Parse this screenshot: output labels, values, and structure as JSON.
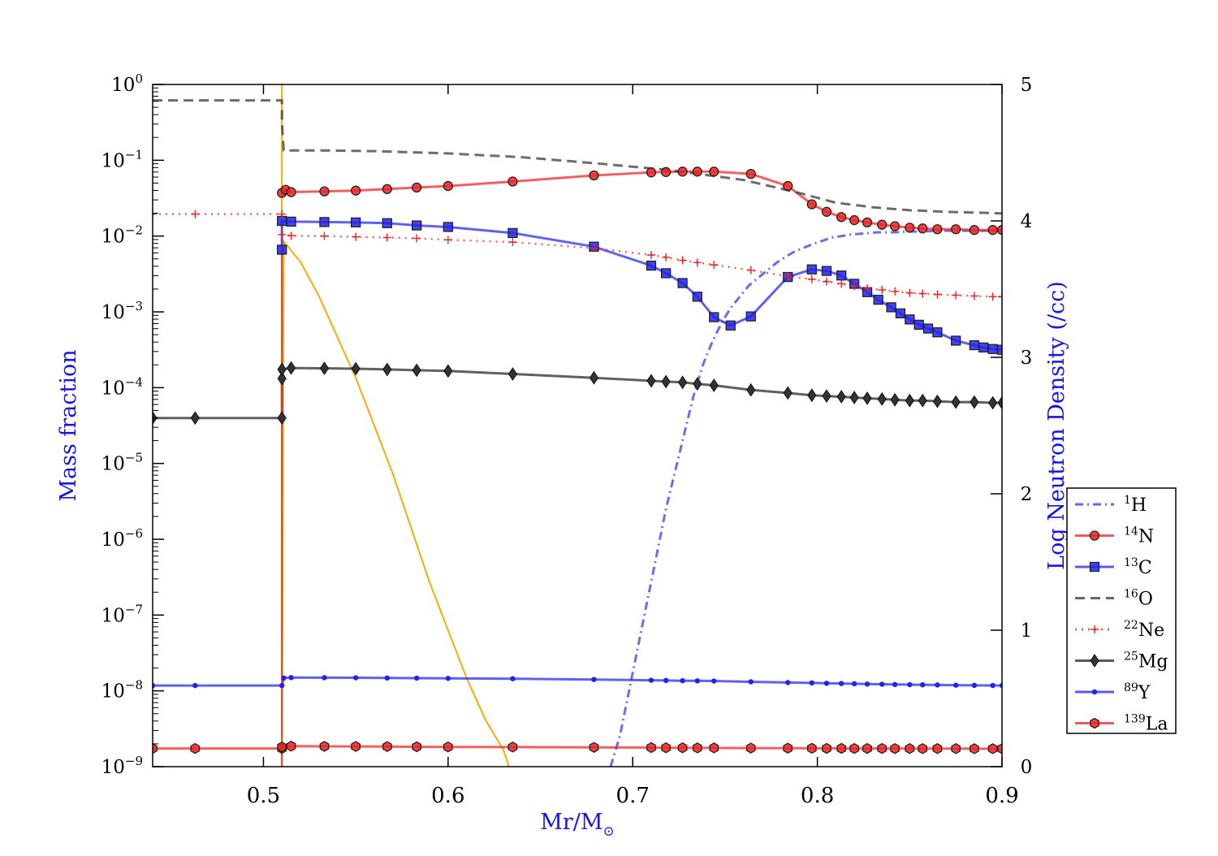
{
  "chart_data": {
    "type": "line",
    "title": "",
    "xlabel": "Mr/M",
    "xlabel_sub": "⊙",
    "ylabel": "Mass fraction",
    "y2label": "Log Neutron Density (/cc)",
    "xlim": [
      0.44,
      0.9
    ],
    "ylim_log10": [
      -9,
      0
    ],
    "y2lim": [
      0,
      5
    ],
    "y_scale": "log",
    "xticks": [
      0.5,
      0.6,
      0.7,
      0.8,
      0.9
    ],
    "xtick_labels": [
      "0.5",
      "0.6",
      "0.7",
      "0.8",
      "0.9"
    ],
    "ytick_exponents": [
      0,
      -1,
      -2,
      -3,
      -4,
      -5,
      -6,
      -7,
      -8,
      -9
    ],
    "ytick_base": "10",
    "y2ticks": [
      0,
      1,
      2,
      3,
      4,
      5
    ],
    "y2tick_labels": [
      "0",
      "1",
      "2",
      "3",
      "4",
      "5"
    ],
    "legend_position": "right",
    "series": [
      {
        "name": "1H",
        "mass": "1",
        "sym": "H",
        "color": "#3333ee",
        "style": "dashdot",
        "marker": "none",
        "x": [
          0.688,
          0.693,
          0.698,
          0.703,
          0.708,
          0.713,
          0.718,
          0.723,
          0.728,
          0.733,
          0.738,
          0.743,
          0.748,
          0.753,
          0.758,
          0.763,
          0.768,
          0.773,
          0.778,
          0.783,
          0.788,
          0.793,
          0.798,
          0.803,
          0.808,
          0.813,
          0.818,
          0.823,
          0.828,
          0.833,
          0.838,
          0.843,
          0.848,
          0.853,
          0.858,
          0.863,
          0.868,
          0.873,
          0.878,
          0.883,
          0.888,
          0.893,
          0.9
        ],
        "y": [
          -9.0,
          -8.6,
          -8.0,
          -7.4,
          -6.8,
          -6.2,
          -5.6,
          -5.1,
          -4.6,
          -4.1,
          -3.7,
          -3.4,
          -3.15,
          -2.95,
          -2.8,
          -2.65,
          -2.55,
          -2.45,
          -2.35,
          -2.27,
          -2.2,
          -2.15,
          -2.1,
          -2.06,
          -2.02,
          -2.0,
          -1.98,
          -1.97,
          -1.96,
          -1.95,
          -1.95,
          -1.95,
          -1.94,
          -1.94,
          -1.94,
          -1.93,
          -1.93,
          -1.93,
          -1.93,
          -1.93,
          -1.93,
          -1.93,
          -1.93
        ]
      },
      {
        "name": "14N",
        "mass": "14",
        "sym": "N",
        "color": "#ee2222",
        "style": "solid",
        "marker": "circle",
        "x": [
          0.51,
          0.512,
          0.515,
          0.533,
          0.55,
          0.567,
          0.583,
          0.6,
          0.635,
          0.679,
          0.71,
          0.718,
          0.727,
          0.735,
          0.744,
          0.764,
          0.784,
          0.797,
          0.805,
          0.813,
          0.82,
          0.827,
          0.835,
          0.842,
          0.85,
          0.857,
          0.865,
          0.875,
          0.885,
          0.895,
          0.9
        ],
        "y": [
          -1.43,
          -1.39,
          -1.42,
          -1.41,
          -1.4,
          -1.38,
          -1.36,
          -1.34,
          -1.28,
          -1.2,
          -1.16,
          -1.155,
          -1.15,
          -1.15,
          -1.15,
          -1.18,
          -1.34,
          -1.58,
          -1.68,
          -1.75,
          -1.79,
          -1.82,
          -1.85,
          -1.87,
          -1.89,
          -1.9,
          -1.91,
          -1.91,
          -1.92,
          -1.92,
          -1.92
        ]
      },
      {
        "name": "13C",
        "mass": "13",
        "sym": "C",
        "color": "#2222ee",
        "style": "solid",
        "marker": "square",
        "x": [
          0.51,
          0.51,
          0.515,
          0.533,
          0.55,
          0.567,
          0.583,
          0.6,
          0.635,
          0.679,
          0.71,
          0.718,
          0.727,
          0.735,
          0.744,
          0.753,
          0.764,
          0.784,
          0.797,
          0.805,
          0.813,
          0.82,
          0.827,
          0.833,
          0.84,
          0.845,
          0.85,
          0.855,
          0.86,
          0.865,
          0.875,
          0.885,
          0.89,
          0.895,
          0.9
        ],
        "y": [
          -2.18,
          -1.8,
          -1.81,
          -1.815,
          -1.82,
          -1.83,
          -1.86,
          -1.88,
          -1.96,
          -2.14,
          -2.39,
          -2.49,
          -2.62,
          -2.8,
          -3.07,
          -3.18,
          -3.06,
          -2.54,
          -2.44,
          -2.46,
          -2.52,
          -2.63,
          -2.74,
          -2.84,
          -2.94,
          -3.02,
          -3.1,
          -3.17,
          -3.22,
          -3.27,
          -3.38,
          -3.44,
          -3.47,
          -3.49,
          -3.5
        ]
      },
      {
        "name": "16O",
        "mass": "16",
        "sym": "O",
        "color": "#333333",
        "style": "dashed",
        "marker": "none",
        "x": [
          0.44,
          0.51,
          0.51,
          0.511,
          0.53,
          0.56,
          0.6,
          0.64,
          0.68,
          0.72,
          0.76,
          0.79,
          0.81,
          0.83,
          0.85,
          0.87,
          0.9
        ],
        "y": [
          -0.21,
          -0.21,
          -0.5,
          -0.87,
          -0.87,
          -0.88,
          -0.91,
          -0.96,
          -1.04,
          -1.13,
          -1.26,
          -1.43,
          -1.56,
          -1.62,
          -1.66,
          -1.68,
          -1.7
        ]
      },
      {
        "name": "22Ne",
        "mass": "22",
        "sym": "Ne",
        "color": "#ee2222",
        "style": "dotted",
        "marker": "plus",
        "x": [
          0.44,
          0.463,
          0.51,
          0.51,
          0.515,
          0.533,
          0.55,
          0.567,
          0.583,
          0.6,
          0.635,
          0.679,
          0.71,
          0.718,
          0.727,
          0.735,
          0.744,
          0.764,
          0.784,
          0.797,
          0.805,
          0.813,
          0.82,
          0.827,
          0.835,
          0.842,
          0.85,
          0.857,
          0.865,
          0.875,
          0.885,
          0.895,
          0.9
        ],
        "y": [
          -1.71,
          -1.71,
          -1.71,
          -1.98,
          -1.995,
          -2.0,
          -2.01,
          -2.02,
          -2.03,
          -2.05,
          -2.08,
          -2.16,
          -2.25,
          -2.28,
          -2.32,
          -2.35,
          -2.38,
          -2.45,
          -2.53,
          -2.57,
          -2.6,
          -2.63,
          -2.66,
          -2.69,
          -2.71,
          -2.73,
          -2.75,
          -2.76,
          -2.77,
          -2.78,
          -2.79,
          -2.8,
          -2.8
        ]
      },
      {
        "name": "25Mg",
        "mass": "25",
        "sym": "Mg",
        "color": "#222222",
        "style": "solid",
        "marker": "diamond",
        "x": [
          0.44,
          0.463,
          0.51,
          0.51,
          0.51,
          0.515,
          0.533,
          0.55,
          0.567,
          0.583,
          0.6,
          0.635,
          0.679,
          0.71,
          0.718,
          0.727,
          0.735,
          0.744,
          0.764,
          0.784,
          0.797,
          0.805,
          0.813,
          0.82,
          0.827,
          0.835,
          0.842,
          0.85,
          0.857,
          0.865,
          0.875,
          0.885,
          0.895,
          0.9
        ],
        "y": [
          -4.4,
          -4.4,
          -4.4,
          -3.88,
          -3.76,
          -3.74,
          -3.745,
          -3.75,
          -3.76,
          -3.77,
          -3.78,
          -3.82,
          -3.87,
          -3.91,
          -3.92,
          -3.93,
          -3.95,
          -3.97,
          -4.03,
          -4.07,
          -4.1,
          -4.11,
          -4.12,
          -4.13,
          -4.14,
          -4.15,
          -4.16,
          -4.17,
          -4.17,
          -4.18,
          -4.19,
          -4.19,
          -4.2,
          -4.2
        ]
      },
      {
        "name": "89Y",
        "mass": "89",
        "sym": "Y",
        "color": "#2222ee",
        "style": "solid",
        "marker": "dot",
        "x": [
          0.44,
          0.463,
          0.51,
          0.511,
          0.515,
          0.533,
          0.55,
          0.567,
          0.583,
          0.6,
          0.635,
          0.679,
          0.71,
          0.718,
          0.727,
          0.735,
          0.744,
          0.764,
          0.784,
          0.797,
          0.805,
          0.813,
          0.82,
          0.827,
          0.835,
          0.842,
          0.85,
          0.857,
          0.865,
          0.875,
          0.885,
          0.895,
          0.9
        ],
        "y": [
          -7.93,
          -7.93,
          -7.93,
          -7.83,
          -7.825,
          -7.826,
          -7.827,
          -7.83,
          -7.832,
          -7.835,
          -7.84,
          -7.85,
          -7.86,
          -7.863,
          -7.866,
          -7.868,
          -7.87,
          -7.88,
          -7.89,
          -7.895,
          -7.9,
          -7.903,
          -7.906,
          -7.91,
          -7.913,
          -7.916,
          -7.918,
          -7.92,
          -7.922,
          -7.925,
          -7.927,
          -7.929,
          -7.93
        ]
      },
      {
        "name": "139La",
        "mass": "139",
        "sym": "La",
        "color": "#ee2222",
        "style": "solid",
        "marker": "hexagon",
        "x": [
          0.44,
          0.463,
          0.51,
          0.51,
          0.515,
          0.533,
          0.55,
          0.567,
          0.583,
          0.6,
          0.635,
          0.679,
          0.71,
          0.718,
          0.727,
          0.735,
          0.744,
          0.764,
          0.784,
          0.797,
          0.805,
          0.813,
          0.82,
          0.827,
          0.835,
          0.842,
          0.85,
          0.857,
          0.865,
          0.875,
          0.885,
          0.895,
          0.9
        ],
        "y": [
          -8.76,
          -8.76,
          -8.76,
          -8.74,
          -8.73,
          -8.732,
          -8.733,
          -8.735,
          -8.737,
          -8.74,
          -8.742,
          -8.745,
          -8.748,
          -8.75,
          -8.75,
          -8.752,
          -8.753,
          -8.755,
          -8.757,
          -8.758,
          -8.759,
          -8.759,
          -8.76,
          -8.76,
          -8.76,
          -8.761,
          -8.761,
          -8.762,
          -8.762,
          -8.762,
          -8.763,
          -8.763,
          -8.763
        ]
      }
    ],
    "neutron_density": {
      "axis": "right",
      "color": "#ffaa00",
      "x": [
        0.51,
        0.51,
        0.51,
        0.511,
        0.52,
        0.53,
        0.54,
        0.55,
        0.56,
        0.57,
        0.58,
        0.59,
        0.6,
        0.61,
        0.62,
        0.63,
        0.633
      ],
      "y": [
        0.0,
        5.0,
        0.0,
        3.85,
        3.7,
        3.45,
        3.15,
        2.85,
        2.5,
        2.15,
        1.75,
        1.35,
        1.0,
        0.65,
        0.35,
        0.12,
        0.0
      ]
    },
    "vertical_line": {
      "x": 0.51,
      "color": "#cc4444"
    }
  }
}
